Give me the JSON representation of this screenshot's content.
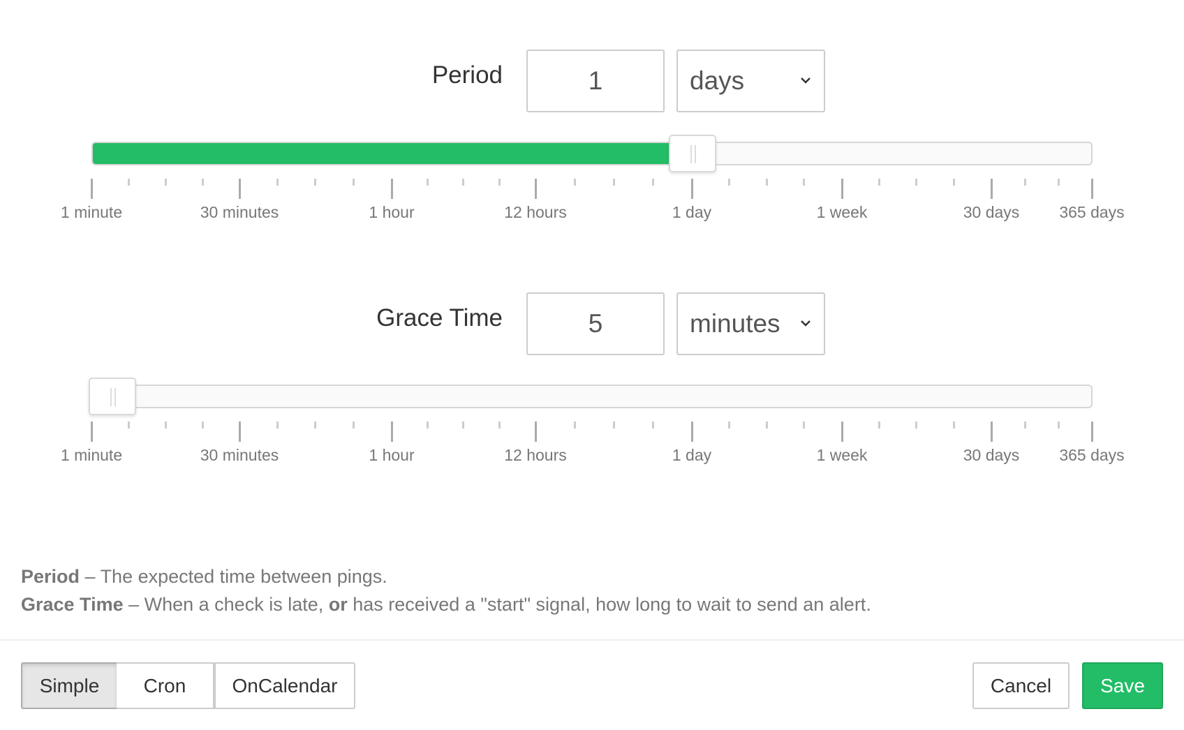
{
  "ticks": {
    "major": [
      "1 minute",
      "30 minutes",
      "1 hour",
      "12 hours",
      "1 day",
      "1 week",
      "30 days",
      "365 days"
    ]
  },
  "period": {
    "label": "Period",
    "value": "1",
    "unit": "days",
    "slider_value": "1 day",
    "slider_fraction": 0.6
  },
  "grace": {
    "label": "Grace Time",
    "value": "5",
    "unit": "minutes",
    "slider_value": "5 minutes",
    "slider_fraction": 0.0
  },
  "help": {
    "period_term": "Period",
    "period_text": " – The expected time between pings.",
    "grace_term": "Grace Time",
    "grace_text1": " – When a check is late, ",
    "grace_or": "or",
    "grace_text2": " has received a \"start\" signal, how long to wait to send an alert."
  },
  "footer": {
    "modes": [
      "Simple",
      "Cron",
      "OnCalendar"
    ],
    "active_mode": "Simple",
    "cancel": "Cancel",
    "save": "Save"
  },
  "colors": {
    "accent": "#22bd66"
  }
}
